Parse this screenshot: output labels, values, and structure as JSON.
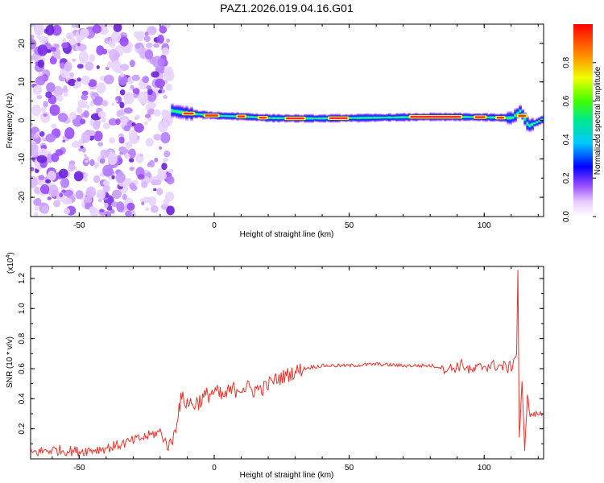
{
  "title": "PAZ1.2026.019.04.16.G01",
  "chart_data": [
    {
      "type": "heatmap",
      "id": "spectrogram",
      "xlabel": "Height of straight line (km)",
      "ylabel": "Frequency (Hz)",
      "xlim": [
        -68,
        122
      ],
      "ylim": [
        -25,
        25
      ],
      "xticks": [
        -50,
        0,
        50,
        100
      ],
      "yticks": [
        -20,
        -10,
        0,
        10,
        20
      ],
      "noise_region_x": [
        -68,
        -16
      ],
      "signal": {
        "x": [
          -16,
          -10,
          0,
          10,
          20,
          30,
          40,
          50,
          60,
          70,
          80,
          90,
          100,
          110,
          113,
          116,
          122
        ],
        "frequency": [
          2.5,
          1.8,
          1.2,
          1.0,
          0.6,
          0.5,
          0.5,
          0.6,
          0.7,
          0.8,
          0.9,
          0.9,
          0.8,
          0.6,
          2.5,
          -1.5,
          0.5
        ]
      },
      "colorbar": {
        "label": "Normalized spectral amplitude",
        "range": [
          0,
          1
        ],
        "ticks": [
          "0.0",
          "0.2",
          "0.4",
          "0.6",
          "0.8"
        ]
      }
    },
    {
      "type": "line",
      "id": "snr",
      "xlabel": "Height of straight line (km)",
      "ylabel": "SNR (10 * v/v)",
      "exponent_label": "(x10",
      "exponent_power": "4",
      "exponent_close": ")",
      "xlim": [
        -68,
        122
      ],
      "ylim": [
        0,
        1.28
      ],
      "xticks": [
        -50,
        0,
        50,
        100
      ],
      "yticks": [
        "0.2",
        "0.4",
        "0.6",
        "0.8",
        "1.0",
        "1.2"
      ],
      "color": "#e8322b",
      "series": [
        {
          "name": "SNR",
          "x": [
            -68,
            -60,
            -50,
            -40,
            -30,
            -25,
            -20,
            -17,
            -15,
            -13,
            -12,
            -10,
            -8,
            -5,
            -2,
            0,
            3,
            6,
            10,
            14,
            18,
            22,
            26,
            30,
            33,
            36,
            40,
            50,
            60,
            70,
            80,
            88,
            92,
            95,
            100,
            105,
            108,
            110,
            111,
            112,
            112.5,
            113,
            114,
            115,
            116,
            117,
            120,
            122
          ],
          "y": [
            0.04,
            0.06,
            0.05,
            0.07,
            0.12,
            0.15,
            0.18,
            0.08,
            0.15,
            0.35,
            0.4,
            0.38,
            0.36,
            0.39,
            0.43,
            0.45,
            0.41,
            0.45,
            0.48,
            0.46,
            0.47,
            0.52,
            0.55,
            0.58,
            0.6,
            0.61,
            0.62,
            0.62,
            0.63,
            0.62,
            0.62,
            0.6,
            0.63,
            0.58,
            0.62,
            0.62,
            0.61,
            0.61,
            0.66,
            0.7,
            1.26,
            0.13,
            0.5,
            0.07,
            0.42,
            0.29,
            0.3,
            0.3
          ]
        }
      ]
    }
  ]
}
